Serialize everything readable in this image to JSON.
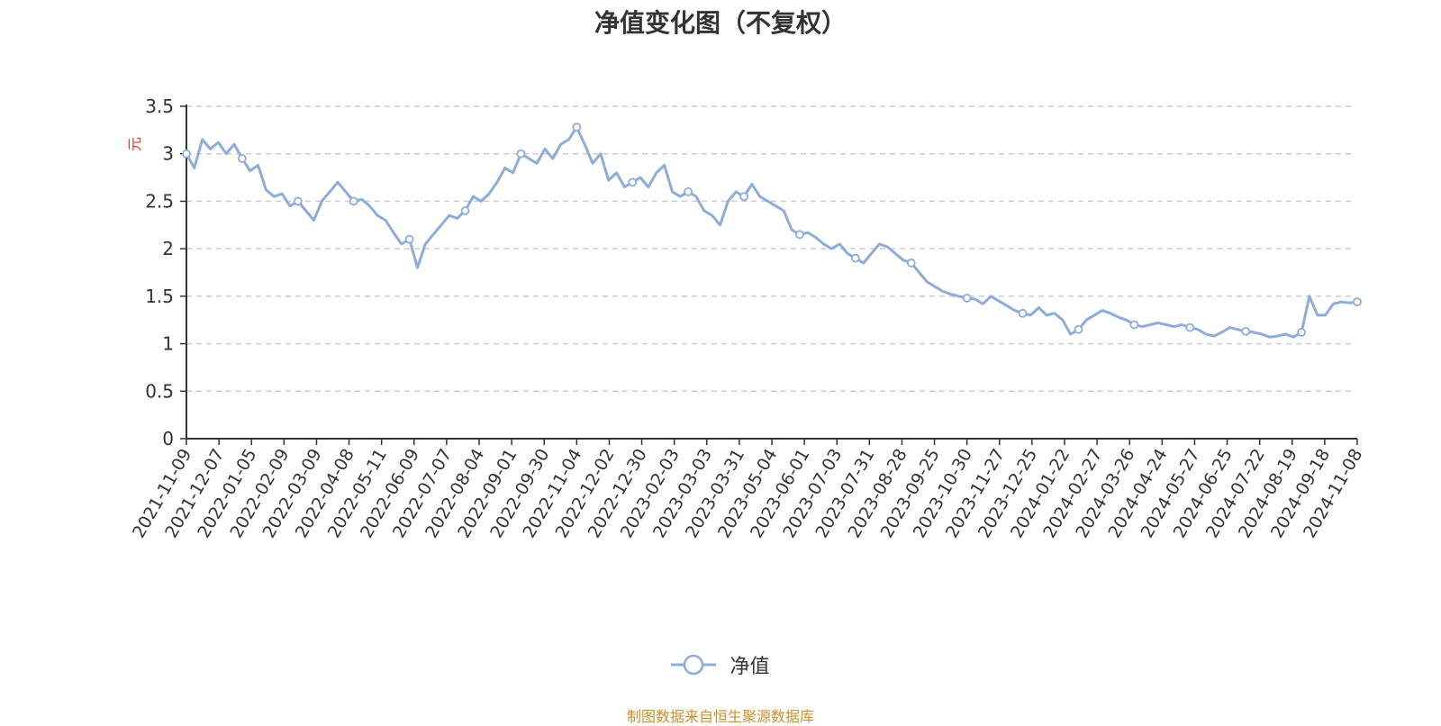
{
  "chart_data": {
    "type": "line",
    "title": "净值变化图（不复权）",
    "ylabel": "元",
    "ylim": [
      0,
      3.5
    ],
    "yticks": [
      "0",
      "0.5",
      "1",
      "1.5",
      "2",
      "2.5",
      "3",
      "3.5"
    ],
    "grid": true,
    "legend_position": "bottom-center",
    "x_ticks": [
      "2021-11-09",
      "2021-12-07",
      "2022-01-05",
      "2022-02-09",
      "2022-03-09",
      "2022-04-08",
      "2022-05-11",
      "2022-06-09",
      "2022-07-07",
      "2022-08-04",
      "2022-09-01",
      "2022-09-30",
      "2022-11-04",
      "2022-12-02",
      "2022-12-30",
      "2023-02-03",
      "2023-03-03",
      "2023-03-31",
      "2023-05-04",
      "2023-06-01",
      "2023-07-03",
      "2023-07-31",
      "2023-08-28",
      "2023-09-25",
      "2023-10-30",
      "2023-11-27",
      "2023-12-25",
      "2024-01-22",
      "2024-02-27",
      "2024-03-26",
      "2024-04-24",
      "2024-05-27",
      "2024-06-25",
      "2024-07-22",
      "2024-08-19",
      "2024-09-18",
      "2024-11-08"
    ],
    "series": [
      {
        "name": "净值",
        "color": "#8eacd8",
        "values": [
          3.0,
          2.85,
          3.15,
          3.05,
          3.12,
          3.0,
          3.1,
          2.95,
          2.82,
          2.88,
          2.62,
          2.55,
          2.58,
          2.45,
          2.5,
          2.4,
          2.3,
          2.5,
          2.6,
          2.7,
          2.6,
          2.5,
          2.52,
          2.45,
          2.35,
          2.3,
          2.17,
          2.05,
          2.1,
          1.8,
          2.05,
          2.15,
          2.25,
          2.35,
          2.32,
          2.4,
          2.55,
          2.5,
          2.58,
          2.7,
          2.85,
          2.8,
          3.0,
          2.95,
          2.9,
          3.05,
          2.95,
          3.1,
          3.15,
          3.28,
          3.1,
          2.9,
          3.0,
          2.72,
          2.8,
          2.65,
          2.7,
          2.75,
          2.65,
          2.8,
          2.88,
          2.6,
          2.55,
          2.6,
          2.55,
          2.4,
          2.35,
          2.25,
          2.5,
          2.6,
          2.55,
          2.68,
          2.55,
          2.5,
          2.45,
          2.4,
          2.2,
          2.15,
          2.17,
          2.12,
          2.05,
          2.0,
          2.05,
          1.95,
          1.9,
          1.85,
          1.95,
          2.05,
          2.02,
          1.95,
          1.88,
          1.85,
          1.75,
          1.65,
          1.6,
          1.55,
          1.52,
          1.5,
          1.48,
          1.47,
          1.42,
          1.5,
          1.45,
          1.4,
          1.35,
          1.32,
          1.3,
          1.38,
          1.3,
          1.32,
          1.25,
          1.1,
          1.15,
          1.25,
          1.3,
          1.35,
          1.32,
          1.28,
          1.25,
          1.2,
          1.18,
          1.2,
          1.22,
          1.2,
          1.18,
          1.2,
          1.17,
          1.15,
          1.1,
          1.08,
          1.12,
          1.17,
          1.15,
          1.13,
          1.12,
          1.1,
          1.07,
          1.08,
          1.1,
          1.07,
          1.12,
          1.5,
          1.3,
          1.3,
          1.42,
          1.44,
          1.43,
          1.44
        ]
      }
    ],
    "markers_every": 7
  },
  "legend": {
    "label": "净值"
  },
  "source_note": "制图数据来自恒生聚源数据库"
}
